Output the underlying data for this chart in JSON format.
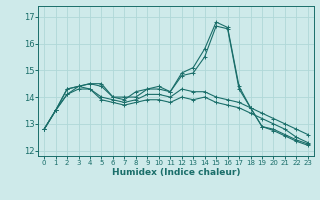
{
  "xlabel": "Humidex (Indice chaleur)",
  "bg_color": "#ceeaea",
  "grid_color": "#b0d8d8",
  "line_color": "#1a6e6a",
  "xlim": [
    -0.5,
    23.5
  ],
  "ylim": [
    11.8,
    17.4
  ],
  "yticks": [
    12,
    13,
    14,
    15,
    16,
    17
  ],
  "xticks": [
    0,
    1,
    2,
    3,
    4,
    5,
    6,
    7,
    8,
    9,
    10,
    11,
    12,
    13,
    14,
    15,
    16,
    17,
    18,
    19,
    20,
    21,
    22,
    23
  ],
  "series": [
    [
      12.8,
      13.5,
      14.3,
      14.4,
      14.5,
      14.5,
      14.0,
      14.0,
      14.0,
      14.3,
      14.4,
      14.2,
      14.9,
      15.1,
      15.8,
      16.8,
      16.6,
      14.4,
      13.6,
      12.9,
      12.8,
      12.6,
      12.4,
      12.25
    ],
    [
      12.8,
      13.5,
      14.3,
      14.4,
      14.5,
      14.4,
      14.0,
      13.9,
      14.2,
      14.3,
      14.3,
      14.2,
      14.8,
      14.9,
      15.5,
      16.65,
      16.55,
      14.3,
      13.6,
      12.9,
      12.75,
      12.55,
      12.35,
      12.2
    ],
    [
      12.8,
      13.5,
      14.1,
      14.4,
      14.3,
      14.0,
      13.9,
      13.8,
      13.9,
      14.1,
      14.1,
      14.0,
      14.3,
      14.2,
      14.2,
      14.0,
      13.9,
      13.8,
      13.6,
      13.4,
      13.2,
      13.0,
      12.8,
      12.6
    ],
    [
      12.8,
      13.5,
      14.1,
      14.3,
      14.3,
      13.9,
      13.8,
      13.7,
      13.8,
      13.9,
      13.9,
      13.8,
      14.0,
      13.9,
      14.0,
      13.8,
      13.7,
      13.6,
      13.4,
      13.2,
      13.0,
      12.8,
      12.5,
      12.3
    ]
  ]
}
